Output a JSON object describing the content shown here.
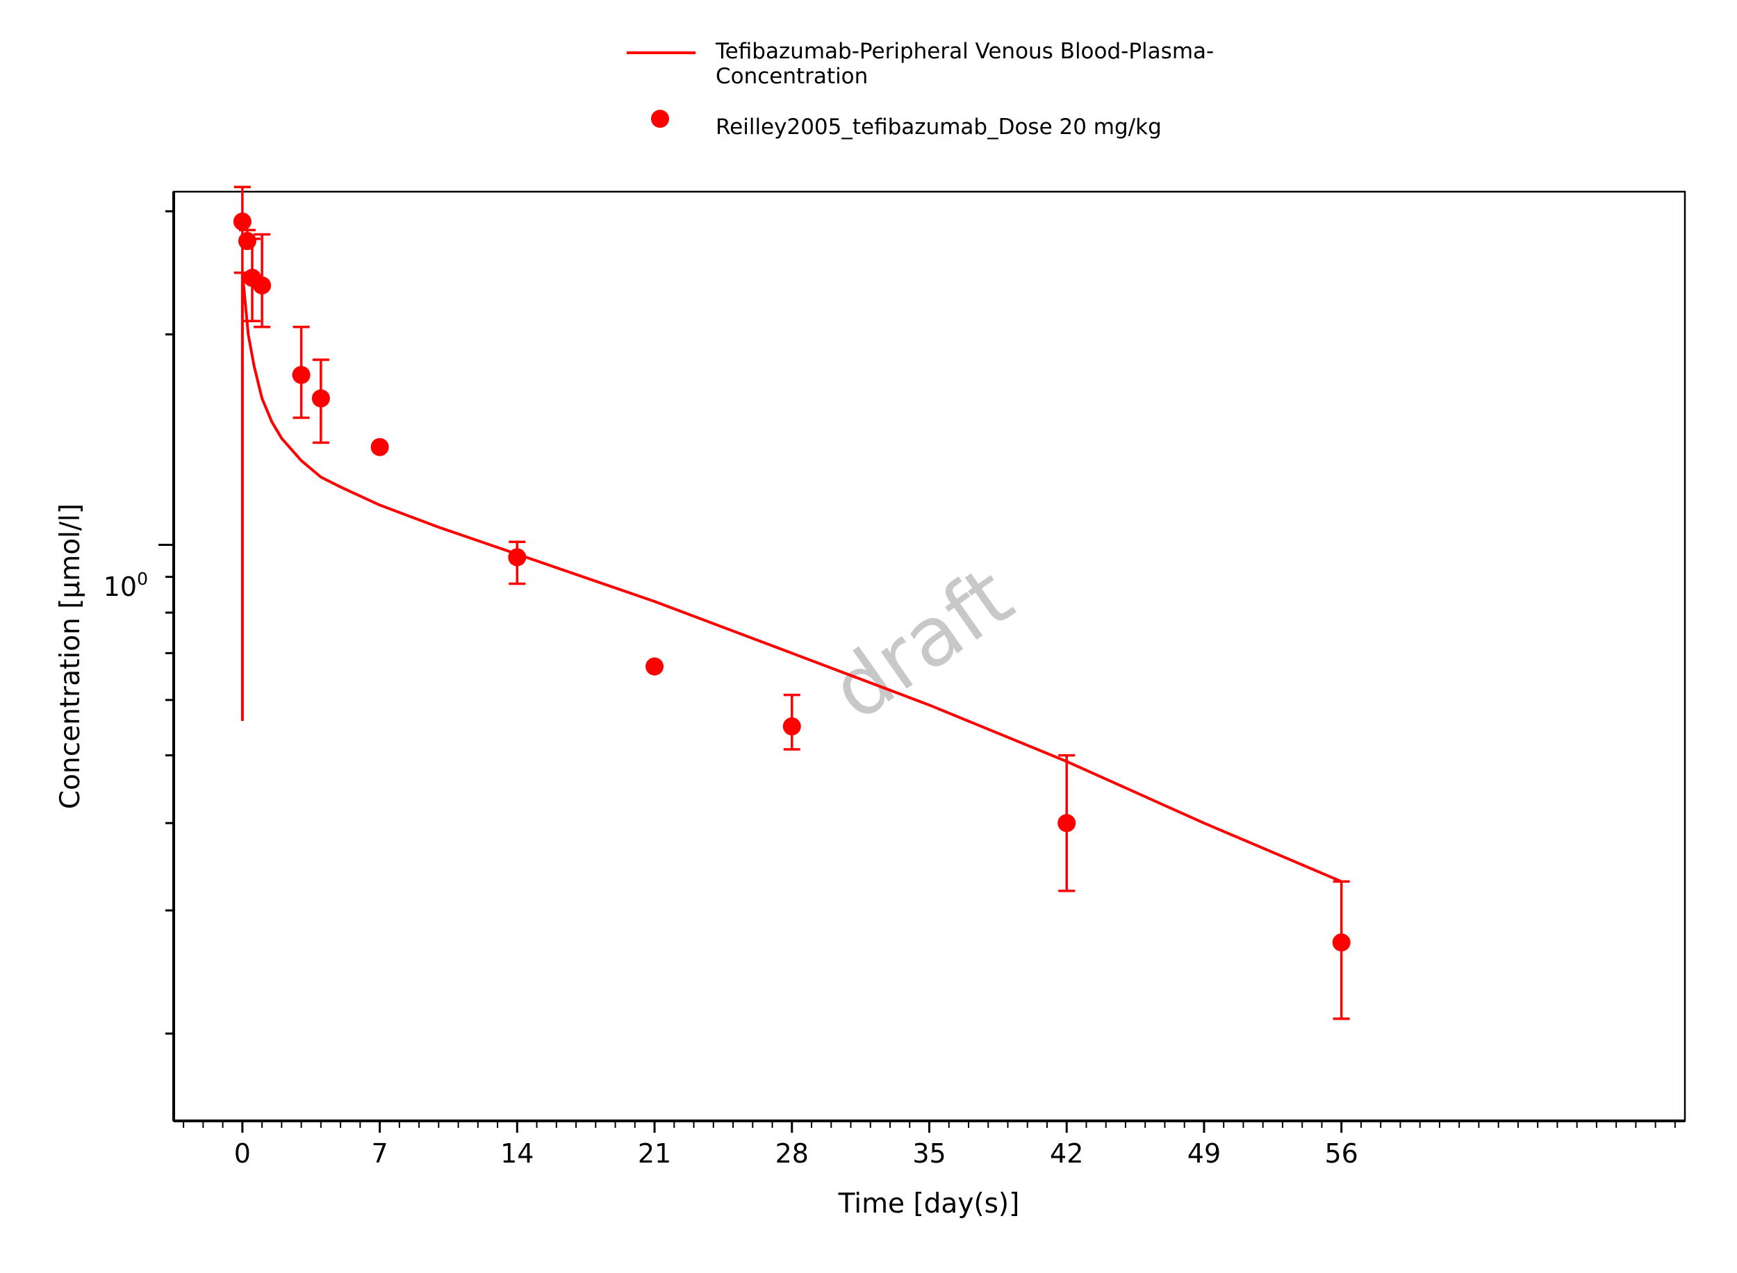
{
  "colors": {
    "series": "#ff0000",
    "axis": "#000000",
    "watermark": "#c8c8c8"
  },
  "legend": {
    "line_label_1": "Tefibazumab-Peripheral Venous Blood-Plasma-",
    "line_label_2": "Concentration",
    "marker_label": "Reilley2005_tefibazumab_Dose 20 mg/kg"
  },
  "watermark": "draft",
  "chart_data": {
    "type": "line",
    "xlabel": "Time [day(s)]",
    "ylabel": "Concentration [µmol/l]",
    "xlim": [
      -3.5,
      73.5
    ],
    "ylim": [
      0.15,
      3.2
    ],
    "yscale": "log",
    "grid": false,
    "legend_position": "top",
    "x_ticks": [
      0,
      7,
      14,
      21,
      28,
      35,
      42,
      49,
      56
    ],
    "y_tick_label": {
      "base": "10",
      "exponent": "0"
    },
    "series": [
      {
        "name": "Tefibazumab-Peripheral Venous Blood-Plasma-Concentration",
        "kind": "line",
        "x": [
          0,
          0,
          0.3,
          0.6,
          1,
          1.5,
          2,
          3,
          4,
          5,
          7,
          10,
          14,
          21,
          28,
          35,
          42,
          49,
          56
        ],
        "y": [
          0.56,
          2.45,
          2.0,
          1.8,
          1.62,
          1.5,
          1.42,
          1.32,
          1.25,
          1.21,
          1.14,
          1.06,
          0.97,
          0.83,
          0.7,
          0.59,
          0.49,
          0.4,
          0.33
        ]
      },
      {
        "name": "Reilley2005_tefibazumab_Dose 20 mg/kg",
        "kind": "scatter",
        "x": [
          0,
          0.25,
          0.5,
          1,
          3,
          4,
          7,
          14,
          21,
          28,
          42,
          56
        ],
        "y": [
          2.9,
          2.72,
          2.41,
          2.35,
          1.75,
          1.62,
          1.38,
          0.96,
          0.67,
          0.55,
          0.4,
          0.27
        ],
        "err_low": [
          2.45,
          null,
          2.09,
          2.05,
          1.52,
          1.4,
          null,
          0.88,
          null,
          0.51,
          0.32,
          0.21
        ],
        "err_high": [
          3.25,
          2.82,
          2.74,
          2.78,
          2.05,
          1.84,
          null,
          1.01,
          null,
          0.61,
          0.5,
          0.33
        ]
      }
    ]
  }
}
